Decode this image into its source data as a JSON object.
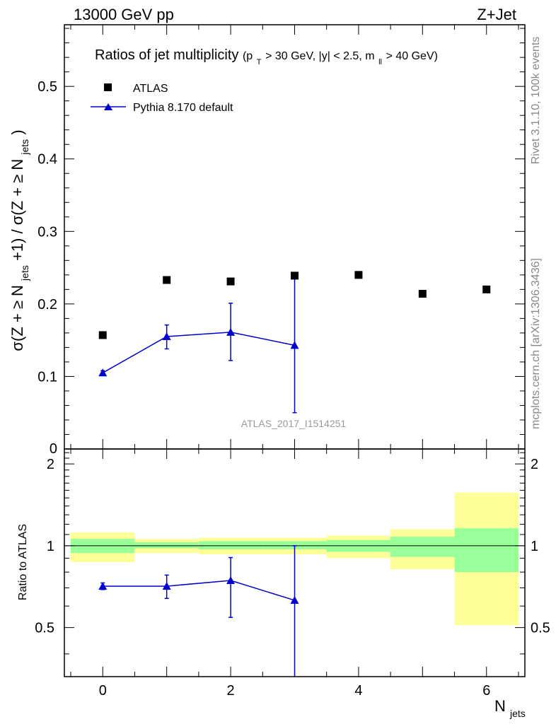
{
  "header": {
    "left": "13000 GeV pp",
    "right": "Z+Jet"
  },
  "side_text": {
    "rivet": "Rivet 3.1.10,  100k events",
    "mcplots": "mcplots.cern.ch [arXiv:1306.3436]"
  },
  "watermark": "ATLAS_2017_I1514251",
  "colors": {
    "data": "#000000",
    "mc": "#0000cc",
    "band_inner": "#99ff99",
    "band_outer": "#ffff99"
  },
  "chart_data": [
    {
      "type": "scatter",
      "panel": "main",
      "title": "Ratios of jet multiplicity",
      "title_sub": {
        "p": "(p",
        "T": "T",
        "cut1": " > 30 GeV, |y| < 2.5, m",
        "ll": "ll",
        "cut2": " > 40 GeV)"
      },
      "ylabel": {
        "a": "σ(Z + ≥ N",
        "b": "jets",
        "c": " +1) / σ(Z + ≥ N",
        "d": "jets",
        "e": ")"
      },
      "xlim": [
        -0.6,
        6.6
      ],
      "ylim": [
        0,
        0.585
      ],
      "yticks": [
        0.1,
        0.2,
        0.3,
        0.4,
        0.5
      ],
      "yticklabels": [
        "0.1",
        "0.2",
        "0.3",
        "0.4",
        "0.5"
      ],
      "ylabel_zero": "0",
      "legend": {
        "loc": "top-left",
        "data_label": "ATLAS",
        "mc_label": "Pythia 8.170 default"
      },
      "series": [
        {
          "name": "ATLAS",
          "x": [
            0,
            1,
            2,
            3,
            4,
            5,
            6
          ],
          "y": [
            0.157,
            0.233,
            0.231,
            0.239,
            0.24,
            0.214,
            0.22
          ]
        },
        {
          "name": "Pythia 8.170 default",
          "x": [
            0,
            1,
            2,
            3
          ],
          "y": [
            0.105,
            0.155,
            0.161,
            0.143
          ],
          "err_lo": [
            0.003,
            0.017,
            0.039,
            0.093
          ],
          "err_hi": [
            0.003,
            0.016,
            0.04,
            0.096
          ]
        }
      ]
    },
    {
      "type": "scatter",
      "panel": "ratio",
      "ylabel": "Ratio to ATLAS",
      "xlabel": {
        "a": "N",
        "b": "jets"
      },
      "xlim": [
        -0.6,
        6.6
      ],
      "ylim": [
        0.33,
        2.27
      ],
      "xticks": [
        0,
        2,
        4,
        6
      ],
      "xticklabels": [
        "0",
        "2",
        "4",
        "6"
      ],
      "yticks": [
        0.5,
        1,
        2
      ],
      "yticklabels": [
        "0.5",
        "1",
        "2"
      ],
      "bands": {
        "edges": [
          -0.5,
          0.5,
          1.5,
          2.5,
          3.5,
          4.5,
          5.5,
          6.5
        ],
        "inner_lo": [
          0.94,
          0.98,
          0.97,
          0.97,
          0.95,
          0.91,
          0.8
        ],
        "inner_hi": [
          1.06,
          1.03,
          1.04,
          1.04,
          1.05,
          1.08,
          1.16
        ],
        "outer_lo": [
          0.87,
          0.94,
          0.93,
          0.93,
          0.9,
          0.82,
          0.51
        ],
        "outer_hi": [
          1.12,
          1.06,
          1.07,
          1.07,
          1.09,
          1.15,
          1.57
        ]
      },
      "series": [
        {
          "name": "Pythia 8.170 default",
          "x": [
            0,
            1,
            2,
            3
          ],
          "y": [
            0.71,
            0.71,
            0.745,
            0.63
          ],
          "err_lo": [
            0.02,
            0.07,
            0.2,
            0.3
          ],
          "err_hi": [
            0.02,
            0.07,
            0.16,
            0.37
          ]
        }
      ]
    }
  ]
}
